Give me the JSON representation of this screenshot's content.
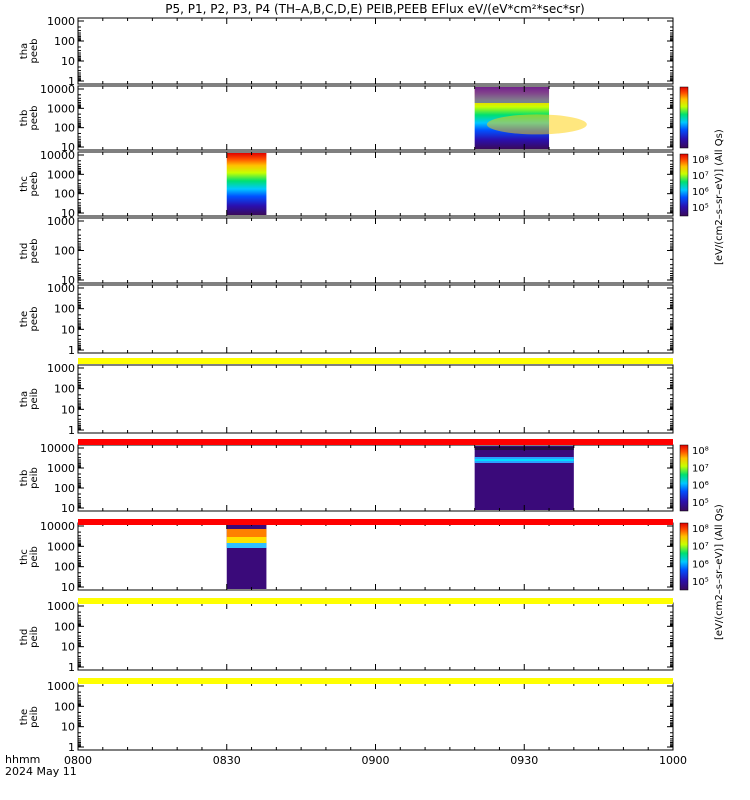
{
  "title": "P5, P1, P2, P3, P4 (TH–A,B,C,D,E) PEIB,PEEB EFlux eV/(eV*cm²*sec*sr)",
  "footer": {
    "xlabel": "hhmm",
    "date": "2024 May 11"
  },
  "colorbars": [
    {
      "label": "[eV/(cm2–s–sr–eV)] (All Qs)",
      "ticks": [
        "10⁵",
        "10⁶",
        "10⁷",
        "10⁸"
      ]
    },
    {
      "label": "[eV/(cm2–s–sr–eV)] (All Qs)",
      "ticks": [
        "10⁵",
        "10⁶",
        "10⁷",
        "10⁸"
      ]
    }
  ],
  "chart_data": {
    "type": "heatmap",
    "x_axis": {
      "range": [
        "0800",
        "1000"
      ],
      "tick_labels": [
        "0800",
        "0830",
        "0900",
        "0930",
        "1000"
      ]
    },
    "panels": [
      {
        "label": [
          "tha",
          "peeb"
        ],
        "y_ticks": [
          "1000",
          "100",
          "10",
          "1"
        ],
        "data": false
      },
      {
        "label": [
          "thb",
          "peeb"
        ],
        "y_ticks": [
          "10000",
          "1000",
          "100",
          "10"
        ],
        "data": true,
        "time_range": [
          "0920",
          "0935"
        ]
      },
      {
        "label": [
          "thc",
          "peeb"
        ],
        "y_ticks": [
          "10000",
          "1000",
          "100",
          "10"
        ],
        "data": true,
        "time_range": [
          "0830",
          "0838"
        ]
      },
      {
        "label": [
          "thd",
          "peeb"
        ],
        "y_ticks": [
          "1000",
          "100",
          "10"
        ],
        "data": false
      },
      {
        "label": [
          "the",
          "peeb"
        ],
        "y_ticks": [
          "1000",
          "100",
          "10",
          "1"
        ],
        "data": false
      },
      {
        "label": [
          "tha",
          "peib"
        ],
        "y_ticks": [
          "1000",
          "100",
          "10",
          "1"
        ],
        "data": false
      },
      {
        "label": [
          "thb",
          "peib"
        ],
        "y_ticks": [
          "10000",
          "1000",
          "100",
          "10"
        ],
        "data": true,
        "time_range": [
          "0920",
          "0940"
        ]
      },
      {
        "label": [
          "thc",
          "peib"
        ],
        "y_ticks": [
          "10000",
          "1000",
          "100",
          "10"
        ],
        "data": true,
        "time_range": [
          "0830",
          "0838"
        ]
      },
      {
        "label": [
          "thd",
          "peib"
        ],
        "y_ticks": [
          "1000",
          "100",
          "10",
          "1"
        ],
        "data": false
      },
      {
        "label": [
          "the",
          "peib"
        ],
        "y_ticks": [
          "1000",
          "100",
          "10",
          "1"
        ],
        "data": false
      }
    ],
    "status_bars": [
      {
        "color": "#ffff00"
      },
      {
        "color": "#ff0000"
      },
      {
        "color": "#ff0000"
      },
      {
        "color": "#ffff00"
      },
      {
        "color": "#ffff00"
      }
    ]
  }
}
